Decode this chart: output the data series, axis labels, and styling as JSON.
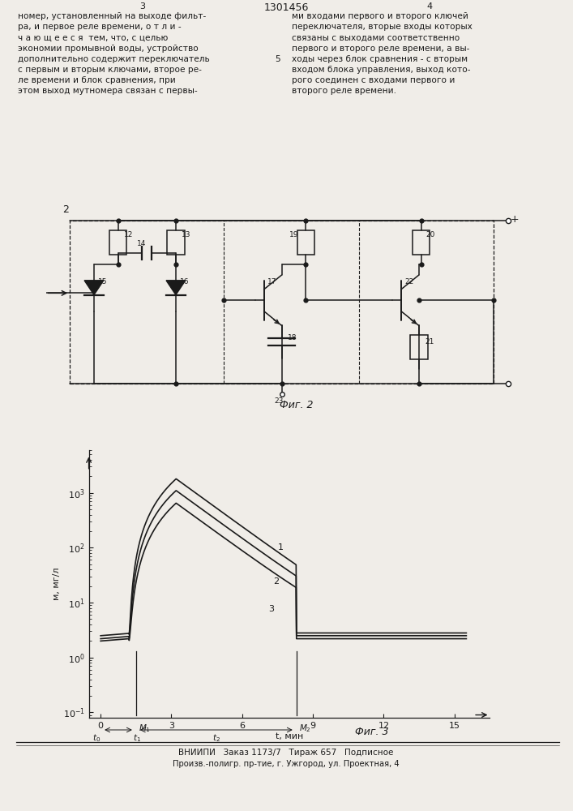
{
  "page_title": "1301456",
  "page_left": "3",
  "page_right": "4",
  "text_left": "номер, установленный на выходе фильт-\nра, и первое реле времени, о т л и -\nч а ю щ е е с я  тем, что, с целью\nэкономии промывной воды, устройство\nдополнительно содержит переключатель\nс первым и вторым ключами, второе ре-\nле времени и блок сравнения, при\nэтом выход мутномера связан с первы-",
  "text_right": "ми входами первого и второго ключей\nпереключателя, вторые входы которых\nсвязаны с выходами соответственно\nпервого и второго реле времени, а вы-\nходы через блок сравнения - с вторым\nвходом блока управления, выход кото-\nрого соединен с входами первого и\nвторого реле времени.",
  "text_number": "5",
  "fig2_label": "Фиг. 2",
  "fig3_label": "Фиг. 3",
  "vniipi_text": "ВНИИПИ   Заказ 1173/7   Тираж 657   Подписное",
  "printer_text": "Произв.-полигр. пр-тие, г. Ужгород, ул. Проектная, 4",
  "bg_color": "#f0ede8",
  "line_color": "#1a1a1a"
}
